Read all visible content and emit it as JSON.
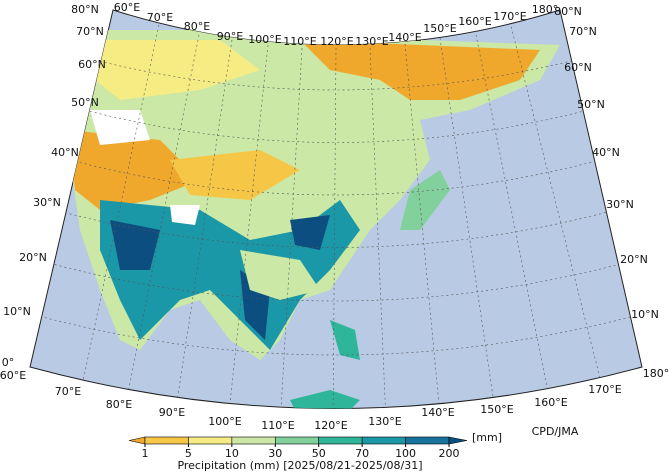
{
  "map": {
    "top_labels": [
      "60°E",
      "70°E",
      "80°E",
      "90°E",
      "100°E",
      "110°E",
      "120°E",
      "130°E",
      "140°E",
      "150°E",
      "160°E",
      "170°E",
      "180°"
    ],
    "left_labels": [
      "80°N",
      "70°N",
      "60°N",
      "50°N",
      "40°N",
      "30°N",
      "20°N",
      "10°N",
      "0°"
    ],
    "right_labels": [
      "80°N",
      "70°N",
      "60°N",
      "50°N",
      "40°N",
      "30°N",
      "20°N",
      "10°N"
    ],
    "bottom_labels": [
      "60°E",
      "70°E",
      "80°E",
      "90°E",
      "100°E",
      "110°E",
      "120°E",
      "130°E",
      "140°E",
      "150°E",
      "160°E",
      "170°E",
      "180°"
    ],
    "credit": "CPD/JMA"
  },
  "legend": {
    "ticks": [
      1,
      5,
      10,
      30,
      50,
      70,
      100,
      200
    ],
    "colors": [
      "#efa82c",
      "#f6c747",
      "#f6ec84",
      "#cbe8a6",
      "#82d09c",
      "#2eb59a",
      "#1b98a7",
      "#17739c",
      "#0d4e80"
    ],
    "unit": "[mm]",
    "title": "Precipitation (mm) [2025/08/21-2025/08/31]"
  }
}
